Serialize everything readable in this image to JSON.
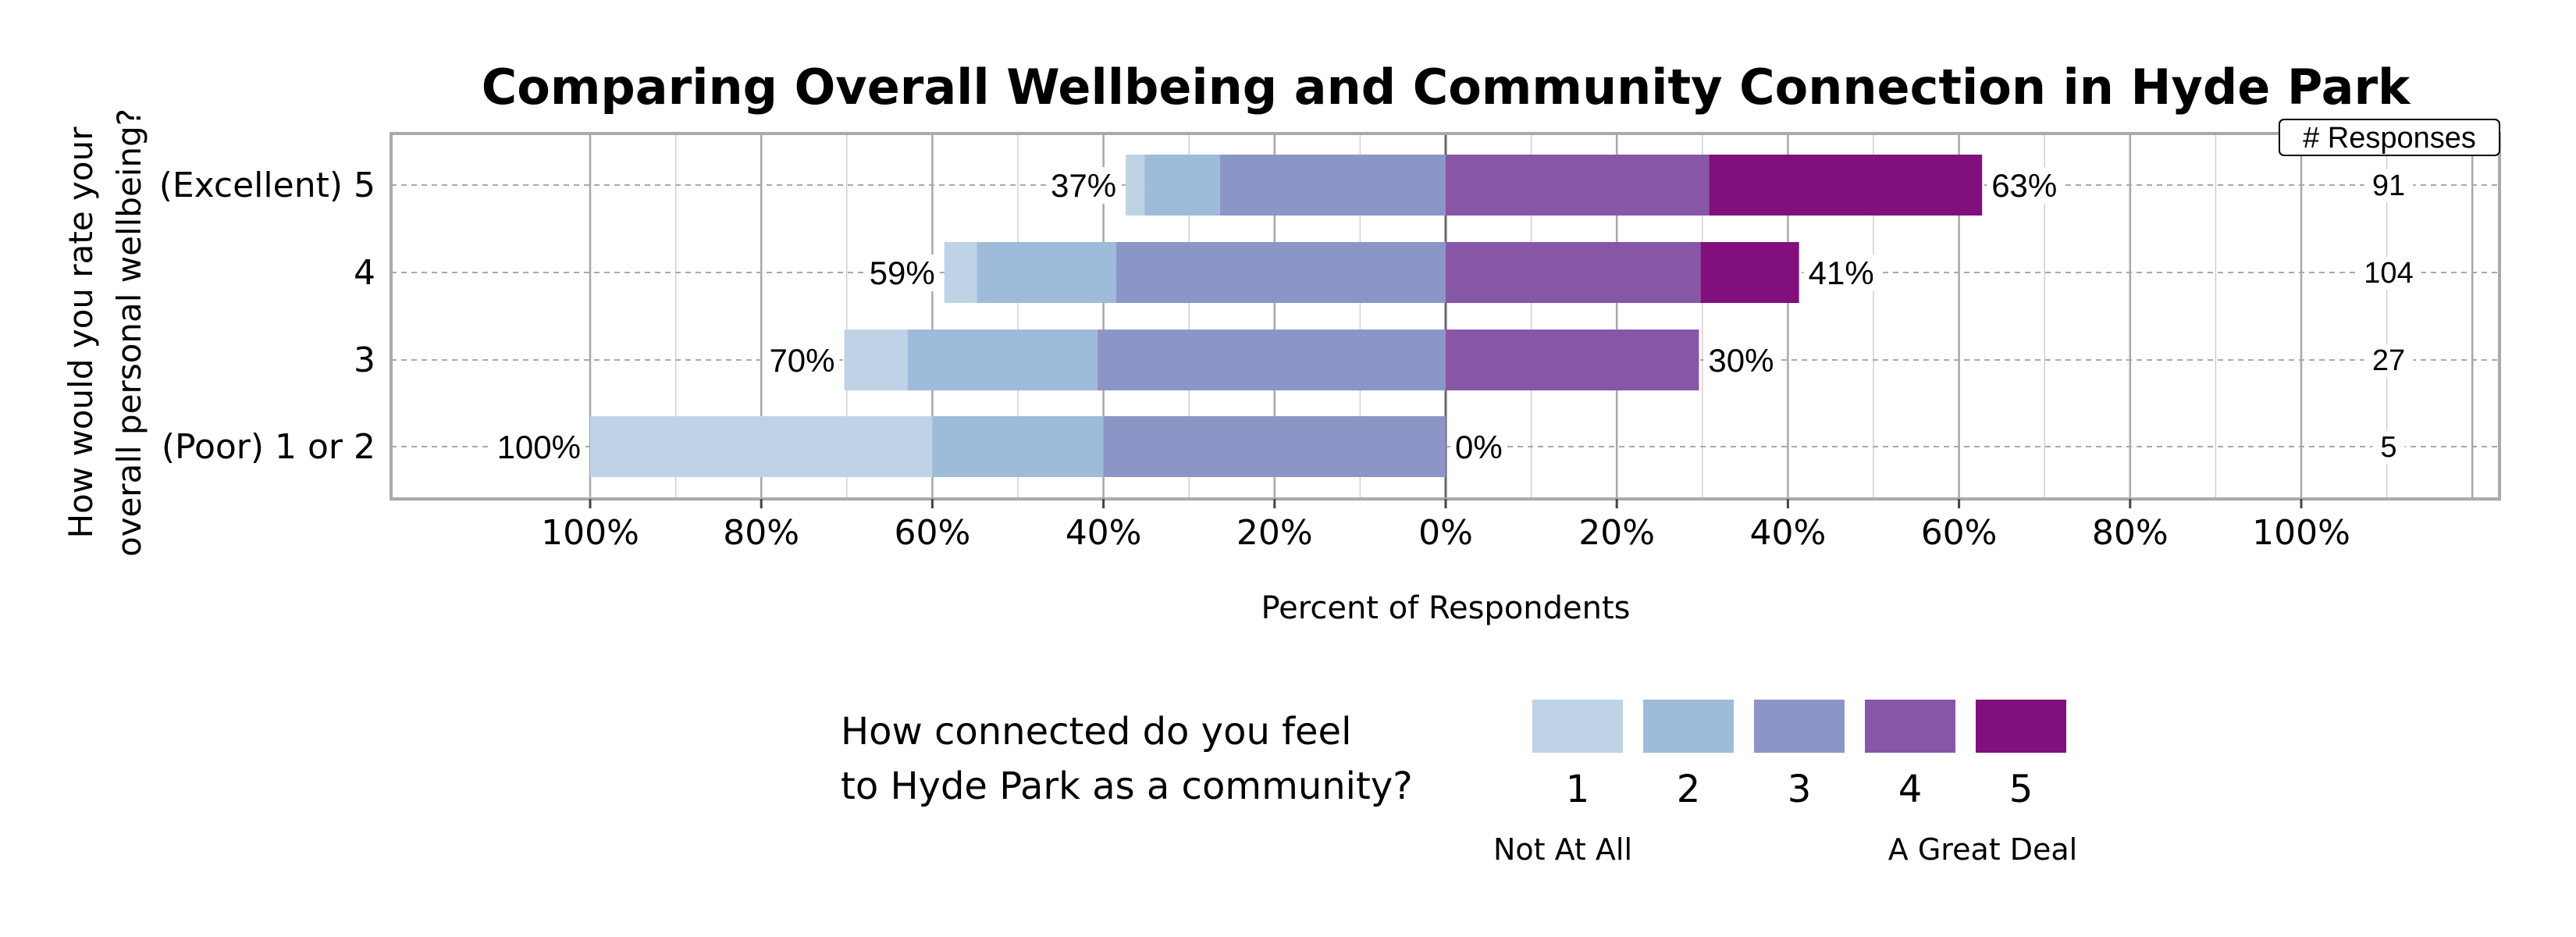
{
  "chart_data": {
    "type": "bar",
    "subtype": "diverging-stacked-horizontal",
    "title": "Comparing Overall Wellbeing and Community Connection in Hyde Park",
    "xlabel": "Percent of Respondents",
    "ylabel": "How would you rate your overall personal wellbeing?",
    "ylabel_lines": [
      "How would you rate your",
      "overall personal wellbeing?"
    ],
    "xlim": [
      -100,
      100
    ],
    "xticks": [
      "100%",
      "80%",
      "60%",
      "40%",
      "20%",
      "0%",
      "20%",
      "40%",
      "60%",
      "80%",
      "100%"
    ],
    "grid": true,
    "categories": [
      "(Excellent) 5",
      "4",
      "3",
      "(Poor) 1 or 2"
    ],
    "series": [
      {
        "name": "1",
        "color": "#bfd3e6",
        "side": "left",
        "values": [
          2.2,
          3.8,
          7.4,
          40
        ]
      },
      {
        "name": "2",
        "color": "#9ebbd9",
        "side": "left",
        "values": [
          8.8,
          16.3,
          22.2,
          20
        ]
      },
      {
        "name": "3",
        "color": "#8c96c6",
        "side": "left",
        "values": [
          26.4,
          38.5,
          40.7,
          40
        ]
      },
      {
        "name": "4",
        "color": "#8856a7",
        "side": "right",
        "values": [
          30.8,
          29.8,
          29.6,
          0
        ]
      },
      {
        "name": "5",
        "color": "#810f7c",
        "side": "right",
        "values": [
          31.9,
          11.5,
          0,
          0
        ]
      }
    ],
    "left_labels": [
      "37%",
      "59%",
      "70%",
      "100%"
    ],
    "right_labels": [
      "63%",
      "41%",
      "30%",
      "0%"
    ],
    "responses_header": "# Responses",
    "responses": [
      "91",
      "104",
      "27",
      "5"
    ],
    "legend": {
      "title_lines": [
        "How connected do you feel",
        "to Hyde Park as a community?"
      ],
      "labels": [
        "1",
        "2",
        "3",
        "4",
        "5"
      ],
      "low_anchor": "Not At All",
      "high_anchor": "A Great Deal",
      "placement": "bottom"
    }
  }
}
